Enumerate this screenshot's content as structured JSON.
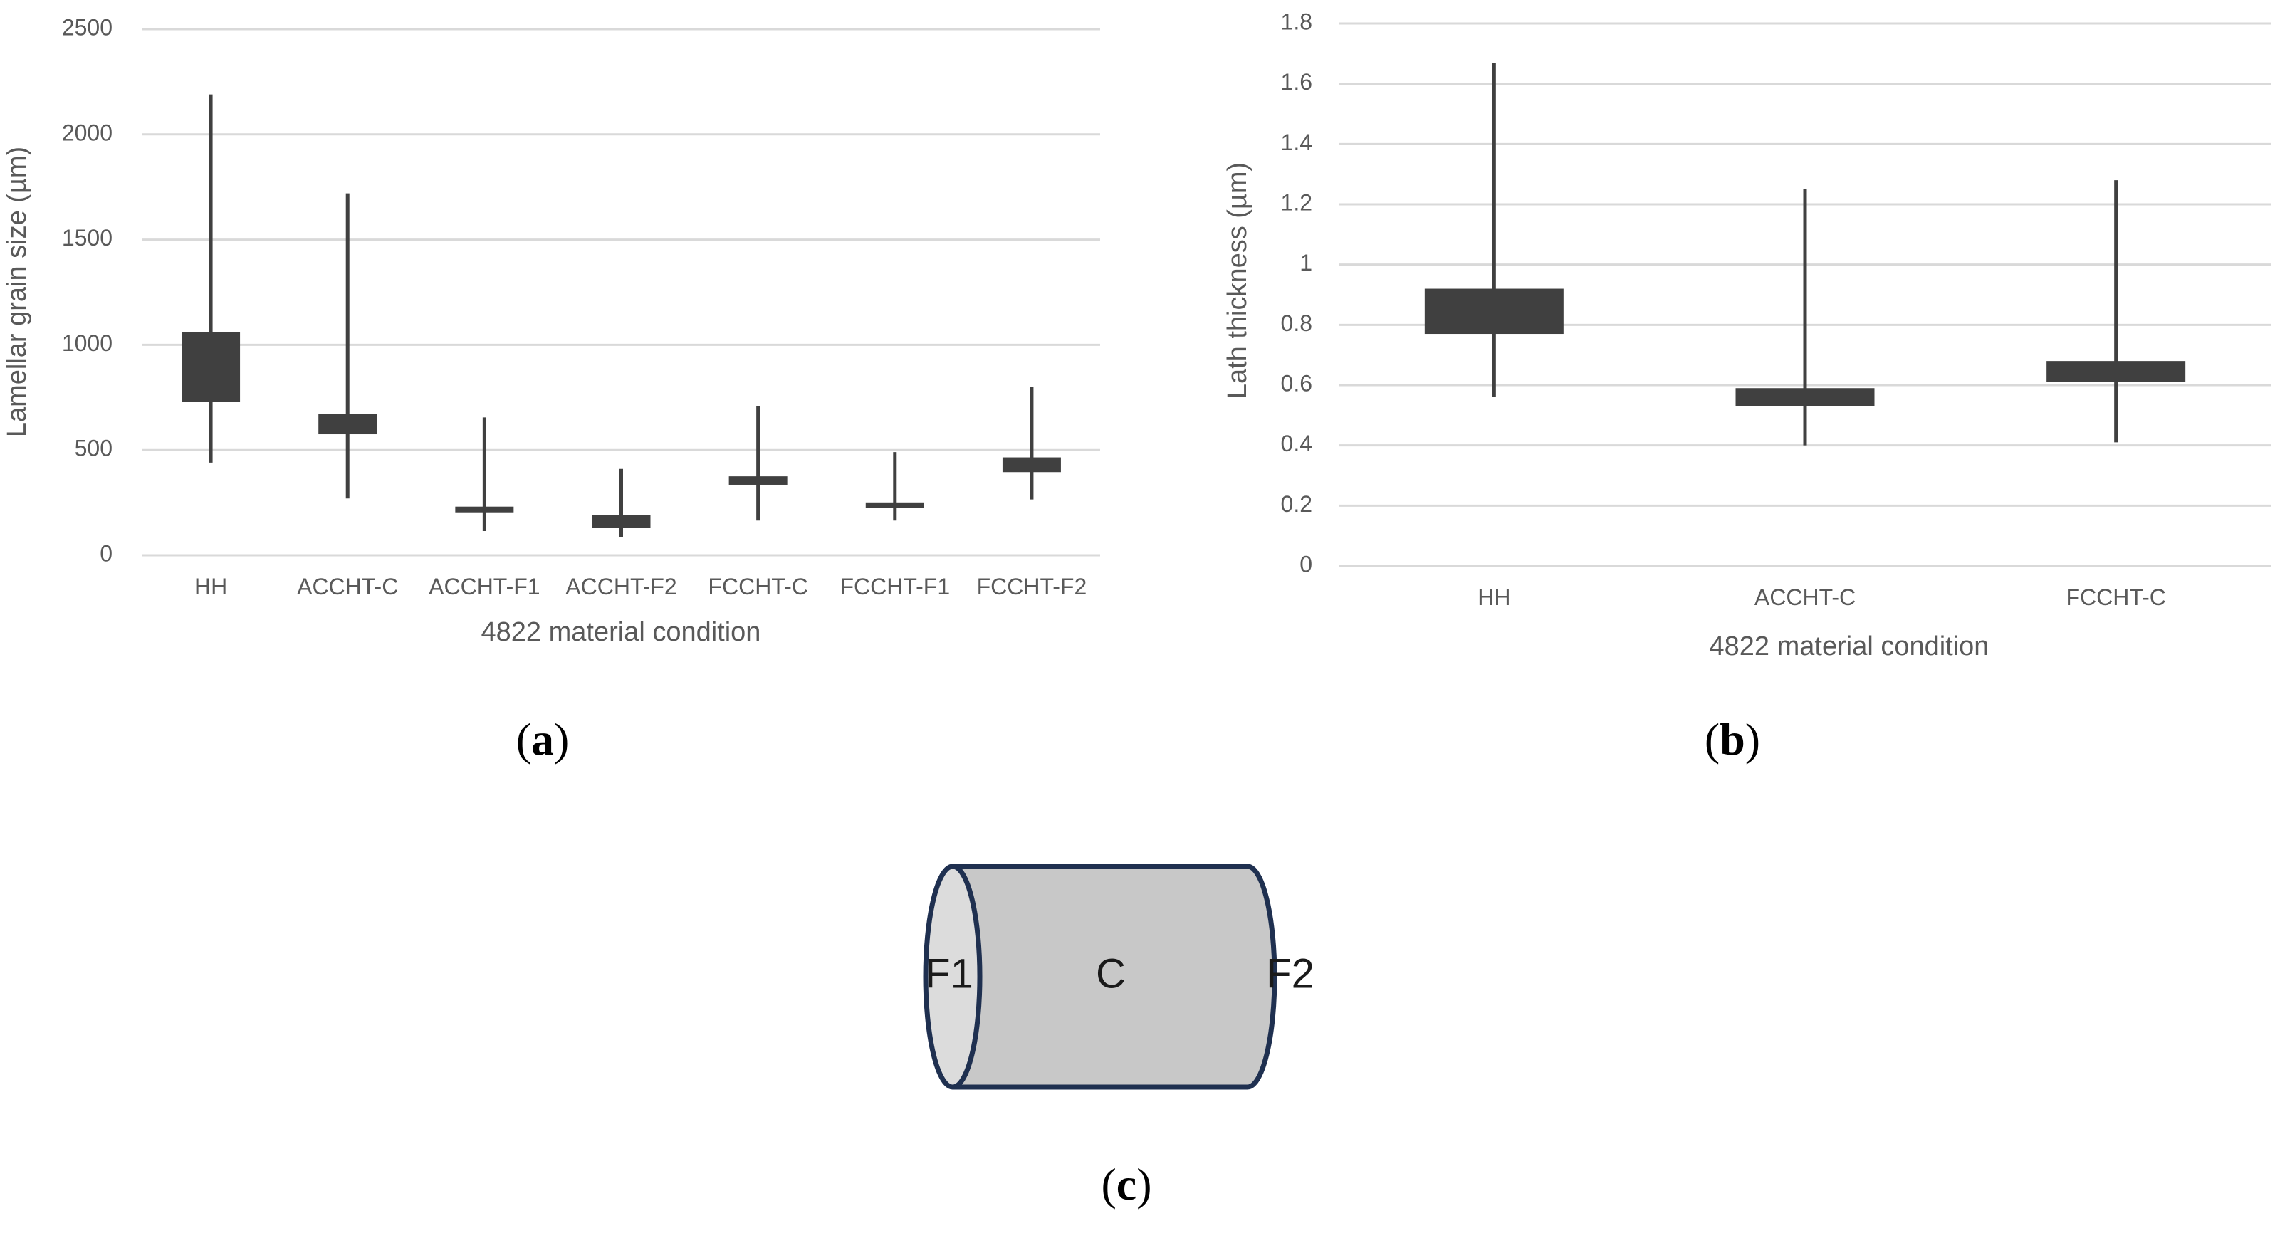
{
  "chart_data": [
    {
      "type": "boxplot",
      "panel_label": "a",
      "xlabel": "4822 material condition",
      "ylabel": "Lamellar grain size (µm)",
      "ylim": [
        0,
        2500
      ],
      "yticks": [
        0,
        500,
        1000,
        1500,
        2000,
        2500
      ],
      "grid": true,
      "categories": [
        "HH",
        "ACCHT-C",
        "ACCHT-F1",
        "ACCHT-F2",
        "FCCHT-C",
        "FCCHT-F1",
        "FCCHT-F2"
      ],
      "boxes": [
        {
          "min": 440,
          "q1": 730,
          "q3": 1060,
          "max": 2190
        },
        {
          "min": 270,
          "q1": 575,
          "q3": 670,
          "max": 1720
        },
        {
          "min": 115,
          "q1": 210,
          "q3": 225,
          "max": 655
        },
        {
          "min": 85,
          "q1": 130,
          "q3": 190,
          "max": 410
        },
        {
          "min": 165,
          "q1": 335,
          "q3": 375,
          "max": 710
        },
        {
          "min": 165,
          "q1": 230,
          "q3": 245,
          "max": 490
        },
        {
          "min": 265,
          "q1": 395,
          "q3": 465,
          "max": 800
        }
      ],
      "colors": {
        "box": "#404040",
        "grid": "#d9d9d9",
        "text": "#595959"
      }
    },
    {
      "type": "boxplot",
      "panel_label": "b",
      "xlabel": "4822 material condition",
      "ylabel": "Lath thickness (µm)",
      "ylim": [
        0,
        1.8
      ],
      "yticks": [
        0,
        0.2,
        0.4,
        0.6,
        0.8,
        1,
        1.2,
        1.4,
        1.6,
        1.8
      ],
      "grid": true,
      "categories": [
        "HH",
        "ACCHT-C",
        "FCCHT-C"
      ],
      "boxes": [
        {
          "min": 0.56,
          "q1": 0.77,
          "q3": 0.92,
          "max": 1.67
        },
        {
          "min": 0.4,
          "q1": 0.53,
          "q3": 0.59,
          "max": 1.25
        },
        {
          "min": 0.41,
          "q1": 0.61,
          "q3": 0.68,
          "max": 1.28
        }
      ],
      "colors": {
        "box": "#404040",
        "grid": "#d9d9d9",
        "text": "#595959"
      }
    }
  ],
  "diagram": {
    "panel_label": "c",
    "labels": {
      "left_face": "F1",
      "center": "C",
      "right_face": "F2"
    },
    "colors": {
      "body": "#c8c8c8",
      "left_face": "#dcdcdc",
      "outline": "#1f3050"
    }
  }
}
